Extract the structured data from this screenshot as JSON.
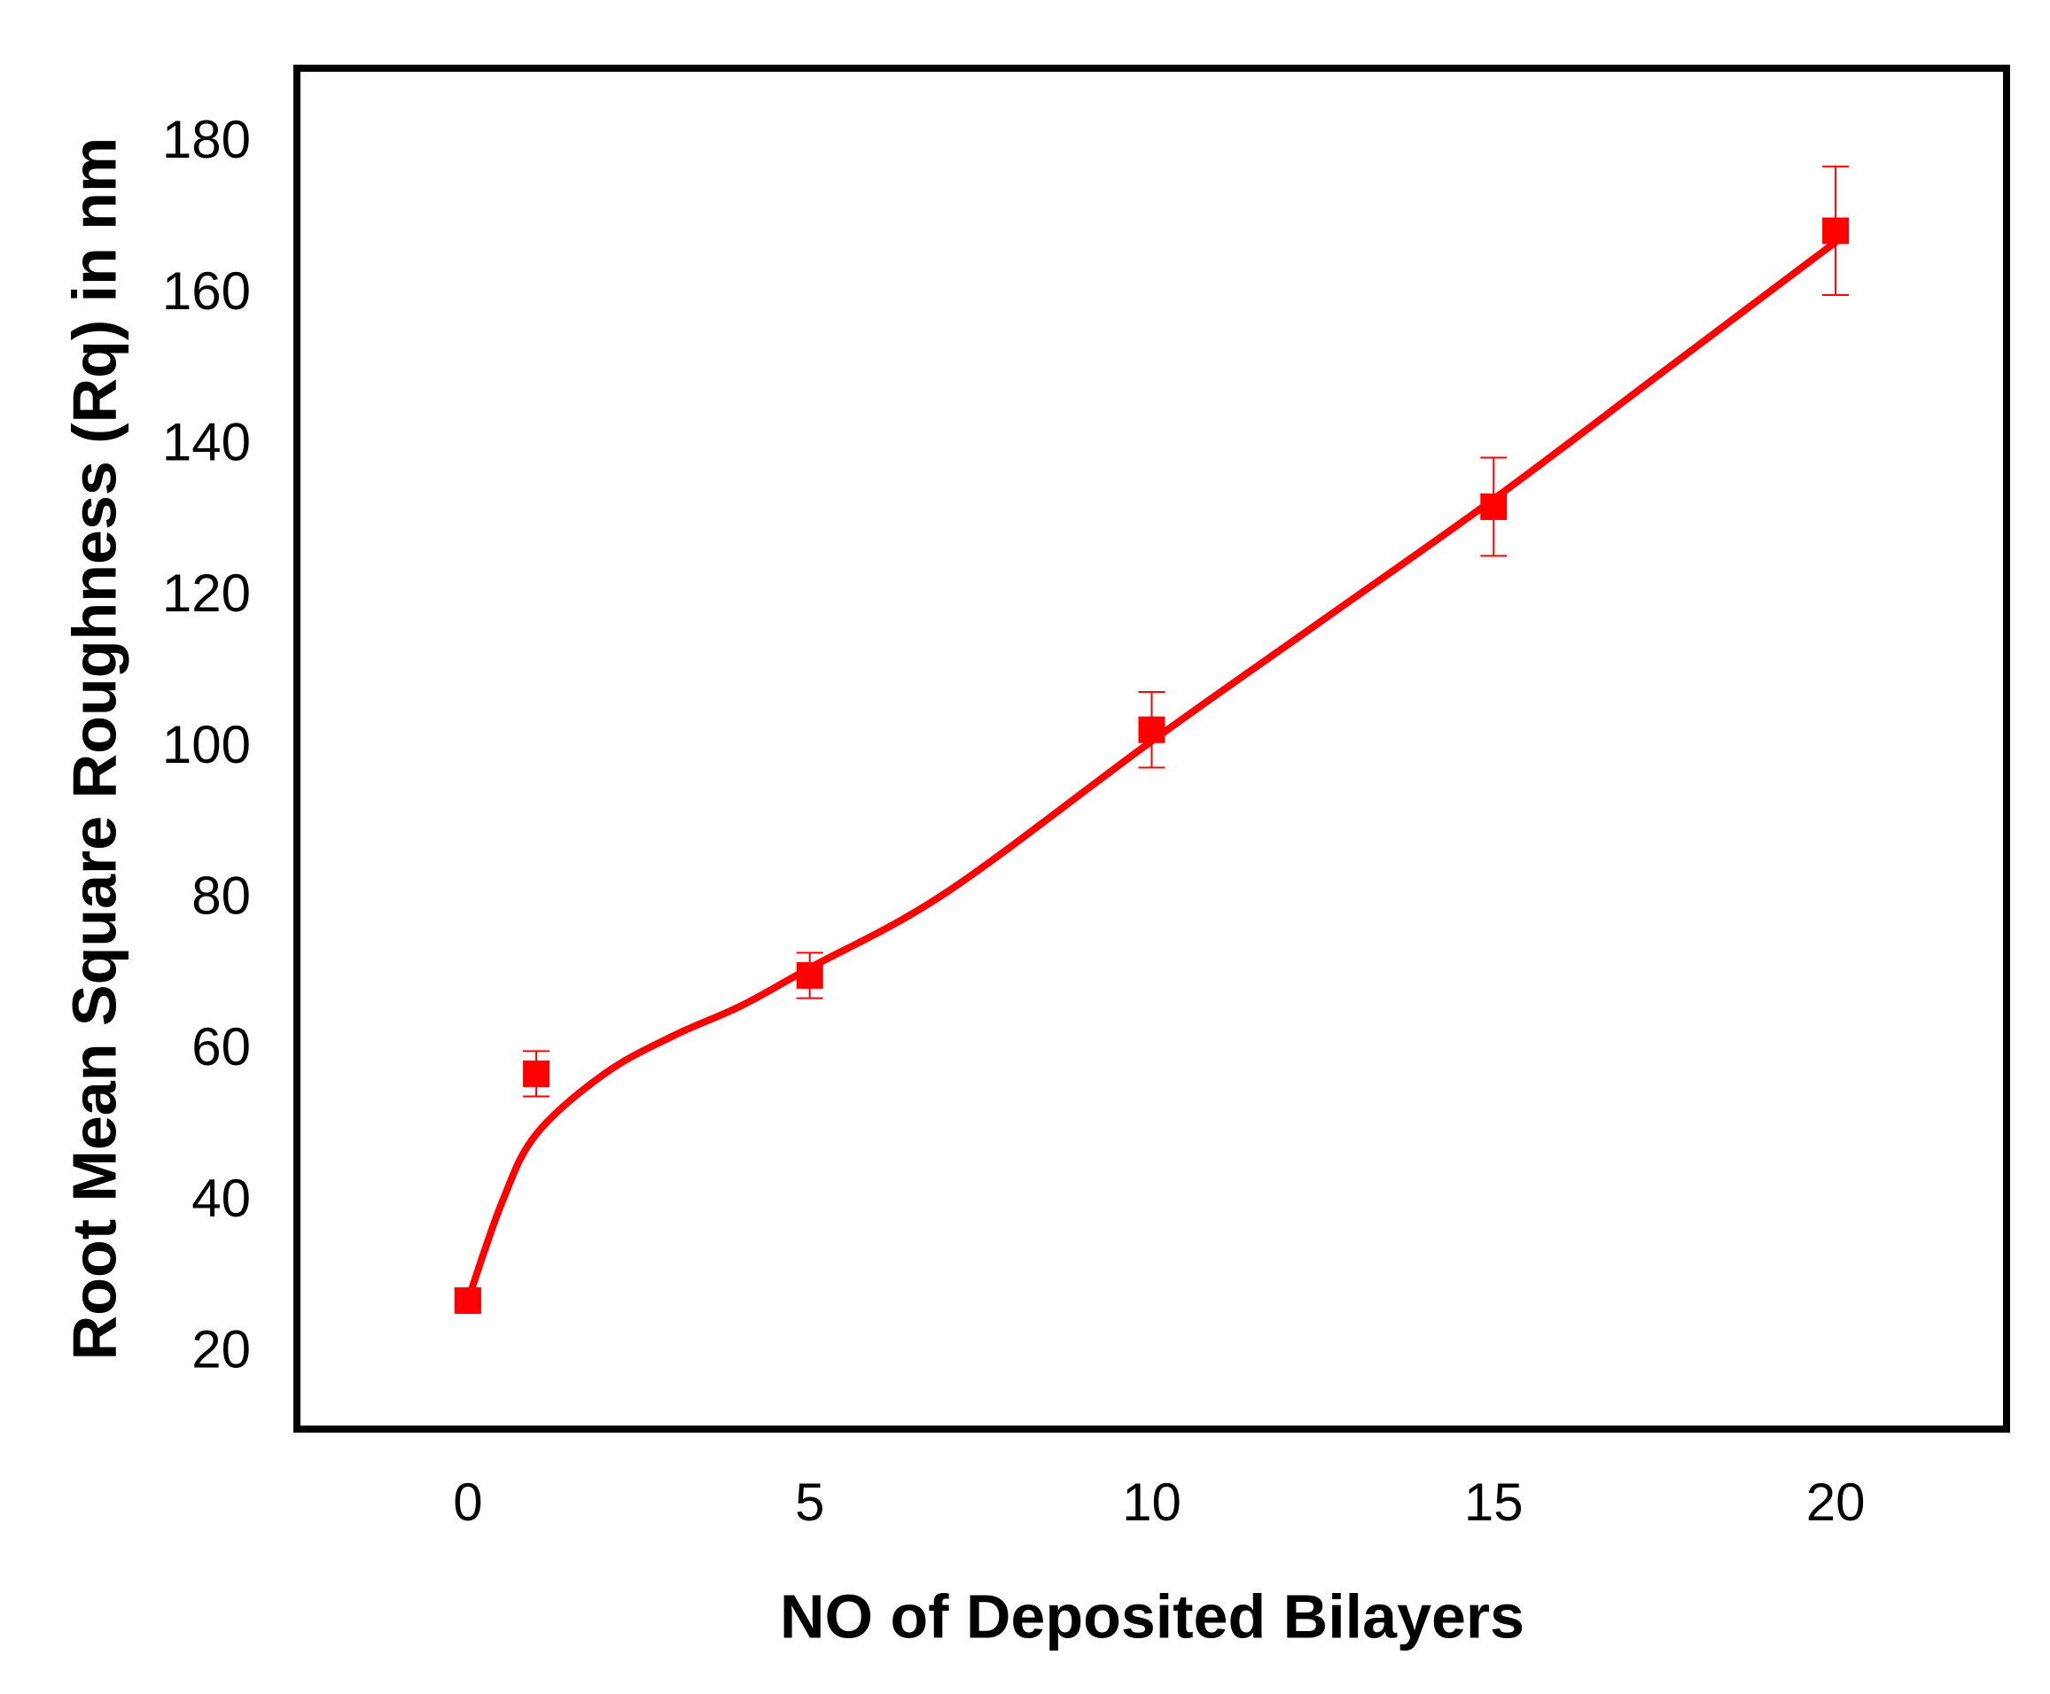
{
  "chart_data": {
    "type": "scatter",
    "x_label": "NO of Deposited Bilayers",
    "y_label": "Root Mean Square Roughness (Rq) in nm",
    "x": [
      0,
      1,
      5,
      10,
      15,
      20
    ],
    "series": [
      {
        "color": "#ff0000",
        "values": [
          27,
          57,
          70,
          102.5,
          132,
          168.5
        ],
        "errors": [
          0.5,
          3,
          3,
          5,
          6.5,
          8.5
        ]
      }
    ],
    "fit_line": {
      "color": "#ff0000",
      "x": [
        0,
        0.5,
        1,
        2,
        3,
        4,
        5,
        7,
        10,
        12.5,
        15,
        17.5,
        20
      ],
      "values": [
        27,
        40,
        49,
        57,
        62,
        66,
        71,
        81,
        101,
        117,
        133,
        150,
        167
      ]
    },
    "xlim": [
      -2.5,
      22.5
    ],
    "xticks": [
      0,
      5,
      10,
      15,
      20
    ],
    "ylim": [
      10,
      190
    ],
    "yticks": [
      20,
      40,
      60,
      80,
      100,
      120,
      140,
      160,
      180
    ],
    "grid": false
  }
}
